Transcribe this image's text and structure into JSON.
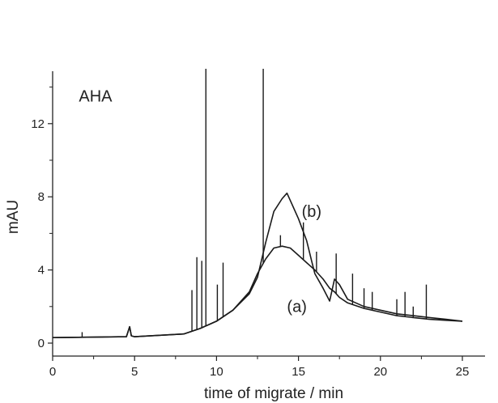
{
  "chart_data": {
    "type": "line",
    "title": "",
    "xlabel": "time of migrate / min",
    "ylabel": "mAU",
    "xlim": [
      0,
      27
    ],
    "ylim": [
      -0.5,
      15
    ],
    "x_ticks": [
      0,
      5,
      10,
      15,
      20,
      25
    ],
    "y_ticks": [
      0,
      4,
      8,
      12
    ],
    "annotations": [
      {
        "text": "AHA",
        "x": 1.6,
        "y": 13.2
      },
      {
        "text": "(b)",
        "x": 15.2,
        "y": 6.9
      },
      {
        "text": "(a)",
        "x": 14.3,
        "y": 1.7
      }
    ],
    "series": [
      {
        "name": "(a)",
        "x": [
          0,
          4.5,
          4.7,
          4.8,
          5.0,
          8.0,
          9.0,
          10.0,
          11.0,
          12.0,
          12.5,
          13.0,
          13.5,
          14.0,
          14.5,
          15.0,
          15.5,
          16.0,
          16.5,
          16.9,
          17.2,
          17.5,
          18.0,
          19.0,
          20.0,
          21.0,
          22.0,
          23.0,
          24.0,
          25.0
        ],
        "y": [
          0.3,
          0.35,
          0.9,
          0.4,
          0.35,
          0.5,
          0.8,
          1.2,
          1.8,
          2.8,
          3.8,
          4.6,
          5.2,
          5.3,
          5.2,
          4.8,
          4.4,
          4.0,
          3.5,
          3.0,
          2.8,
          2.5,
          2.2,
          1.9,
          1.7,
          1.5,
          1.4,
          1.3,
          1.25,
          1.2
        ]
      },
      {
        "name": "(b)",
        "x": [
          0,
          4.5,
          4.7,
          4.8,
          5.0,
          8.0,
          9.0,
          10.0,
          11.0,
          12.0,
          12.5,
          13.0,
          13.5,
          14.0,
          14.3,
          14.6,
          15.0,
          15.5,
          15.8,
          16.0,
          16.5,
          16.9,
          17.2,
          17.5,
          18.0,
          19.0,
          20.0,
          21.0,
          22.0,
          23.0,
          24.0,
          25.0
        ],
        "y": [
          0.3,
          0.35,
          0.9,
          0.4,
          0.35,
          0.5,
          0.8,
          1.2,
          1.8,
          2.7,
          3.6,
          5.5,
          7.2,
          7.9,
          8.2,
          7.6,
          6.8,
          5.6,
          4.5,
          3.8,
          3.0,
          2.3,
          3.5,
          3.2,
          2.4,
          2.0,
          1.8,
          1.6,
          1.5,
          1.4,
          1.3,
          1.2
        ]
      }
    ],
    "spikes": [
      {
        "x": 1.8,
        "y": 0.6
      },
      {
        "x": 8.5,
        "y": 2.9
      },
      {
        "x": 8.8,
        "y": 4.7
      },
      {
        "x": 9.1,
        "y": 4.5
      },
      {
        "x": 9.35,
        "y": 15.0
      },
      {
        "x": 10.05,
        "y": 3.2
      },
      {
        "x": 10.4,
        "y": 4.4
      },
      {
        "x": 12.85,
        "y": 15.0
      },
      {
        "x": 13.9,
        "y": 5.9
      },
      {
        "x": 15.3,
        "y": 6.6
      },
      {
        "x": 16.1,
        "y": 5.0
      },
      {
        "x": 17.3,
        "y": 4.9
      },
      {
        "x": 18.3,
        "y": 3.8
      },
      {
        "x": 19.0,
        "y": 3.0
      },
      {
        "x": 19.5,
        "y": 2.8
      },
      {
        "x": 21.0,
        "y": 2.4
      },
      {
        "x": 21.5,
        "y": 2.8
      },
      {
        "x": 22.0,
        "y": 2.0
      },
      {
        "x": 22.8,
        "y": 3.2
      }
    ],
    "grid": false,
    "colors": {
      "line": "#1a1a1a",
      "axis": "#222222",
      "background": "#ffffff"
    }
  }
}
